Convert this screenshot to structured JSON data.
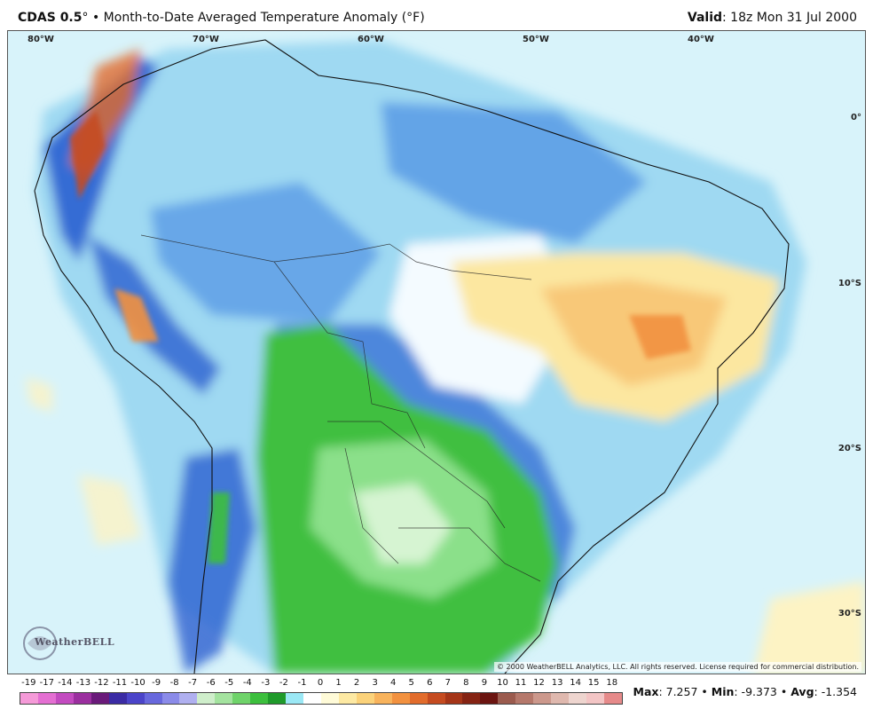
{
  "header": {
    "model": "CDAS 0.5",
    "degree": "°",
    "separator": "•",
    "product": "Month-to-Date Averaged Temperature Anomaly (°F)",
    "valid_label": "Valid",
    "valid_time": ": 18z Mon 31 Jul 2000"
  },
  "map": {
    "lon_labels": [
      "80°W",
      "70°W",
      "60°W",
      "50°W",
      "40°W"
    ],
    "lat_labels": [
      "0°",
      "10°S",
      "20°S",
      "30°S"
    ],
    "logo_text": "WeatherBELL",
    "copyright": "© 2000 WeatherBELL Analytics, LLC. All rights reserved. License required for commercial distribution."
  },
  "legend": {
    "ticks": [
      "-19",
      "-17",
      "-14",
      "-13",
      "-12",
      "-11",
      "-10",
      "-9",
      "-8",
      "-7",
      "-6",
      "-5",
      "-4",
      "-3",
      "-2",
      "-1",
      "0",
      "1",
      "2",
      "3",
      "4",
      "5",
      "6",
      "7",
      "8",
      "9",
      "10",
      "11",
      "12",
      "13",
      "14",
      "15",
      "18"
    ],
    "colors": [
      "#f59ad8",
      "#e46fd2",
      "#c34bc0",
      "#9b2f9f",
      "#6a1a7a",
      "#3b2ba4",
      "#4b44c9",
      "#6868dd",
      "#8b8be9",
      "#b0b0f0",
      "#cfeecb",
      "#a4e39f",
      "#6fd36a",
      "#3cbf3d",
      "#1f9a2a",
      "#9be8f5",
      "#ffffff",
      "#fffbd8",
      "#fde9a3",
      "#fbd27a",
      "#f8b35c",
      "#f2913f",
      "#e26c2c",
      "#c54b20",
      "#a53518",
      "#852313",
      "#6b1410",
      "#9b5b4e",
      "#b5786b",
      "#cc988c",
      "#dfb8ae",
      "#eed5cf",
      "#f3c5c5",
      "#e68a8a"
    ]
  },
  "stats": {
    "max_label": "Max",
    "max_value": ": 7.257",
    "min_label": "Min",
    "min_value": ": -9.373",
    "avg_label": "Avg",
    "avg_value": ": -1.354",
    "sep": " • "
  }
}
